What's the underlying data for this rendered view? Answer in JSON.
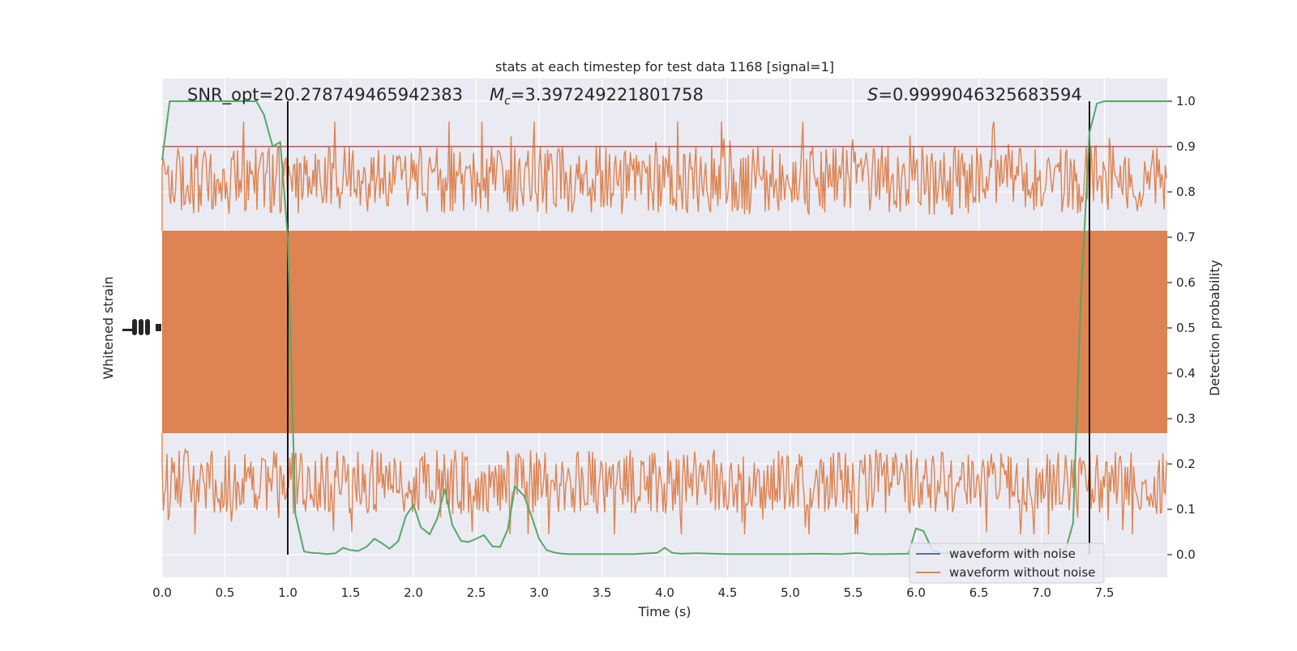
{
  "chart_data": {
    "type": "line",
    "title": "stats at each timestep for test data 1168 [signal=1]",
    "xlabel": "Time (s)",
    "ylabel_left": "Whitened strain",
    "ylabel_right": "Detection probability",
    "xlim": [
      0.0,
      8.0
    ],
    "ylim_right": [
      -0.05,
      1.05
    ],
    "grid": true,
    "x_ticks": [
      "0.0",
      "0.5",
      "1.0",
      "1.5",
      "2.0",
      "2.5",
      "3.0",
      "3.5",
      "4.0",
      "4.5",
      "5.0",
      "5.5",
      "6.0",
      "6.5",
      "7.0",
      "7.5"
    ],
    "y_ticks_right": [
      "0.0",
      "0.1",
      "0.2",
      "0.3",
      "0.4",
      "0.5",
      "0.6",
      "0.7",
      "0.8",
      "0.9",
      "1.0"
    ],
    "annotations": {
      "snr": "SNR_opt=20.278749465942383",
      "mc_symbol": "M",
      "mc_subscript": "c",
      "mc_value": "=3.397249221801758",
      "s_symbol": "S",
      "s_value": "=0.9999046325683594"
    },
    "threshold": {
      "value": 0.9,
      "color": "#c44e52"
    },
    "vertical_markers": [
      1.0,
      7.38
    ],
    "legend": {
      "location": "lower right",
      "entries": [
        {
          "label": "waveform with noise",
          "color": "#4c72b0"
        },
        {
          "label": "waveform without noise",
          "color": "#dd8452"
        }
      ]
    },
    "waveform_color": "#dd8452",
    "detection_color": "#55a868",
    "series": [
      {
        "name": "detection probability",
        "x": [
          0.0,
          0.06,
          0.13,
          0.25,
          0.5,
          0.75,
          0.81,
          0.88,
          0.94,
          1.0,
          1.06,
          1.13,
          1.19,
          1.25,
          1.31,
          1.38,
          1.44,
          1.5,
          1.56,
          1.63,
          1.69,
          1.75,
          1.81,
          1.88,
          1.94,
          2.0,
          2.06,
          2.13,
          2.19,
          2.25,
          2.31,
          2.38,
          2.44,
          2.5,
          2.56,
          2.63,
          2.69,
          2.75,
          2.81,
          2.88,
          2.94,
          3.0,
          3.06,
          3.13,
          3.19,
          3.25,
          3.31,
          3.38,
          3.5,
          3.75,
          3.94,
          4.0,
          4.06,
          4.13,
          4.25,
          4.5,
          4.75,
          5.0,
          5.25,
          5.4,
          5.5,
          5.56,
          5.63,
          5.75,
          5.94,
          6.0,
          6.06,
          6.13,
          6.2,
          6.5,
          7.0,
          7.19,
          7.25,
          7.31,
          7.38,
          7.44,
          7.5,
          7.56,
          7.63,
          8.0
        ],
        "values": [
          0.87,
          1.0,
          1.0,
          1.0,
          1.0,
          1.0,
          0.97,
          0.9,
          0.91,
          0.7,
          0.09,
          0.007,
          0.004,
          0.003,
          0.001,
          0.003,
          0.015,
          0.01,
          0.008,
          0.018,
          0.035,
          0.025,
          0.013,
          0.03,
          0.085,
          0.11,
          0.06,
          0.045,
          0.08,
          0.145,
          0.065,
          0.03,
          0.028,
          0.035,
          0.043,
          0.018,
          0.017,
          0.055,
          0.15,
          0.13,
          0.085,
          0.035,
          0.01,
          0.004,
          0.002,
          0.001,
          0.001,
          0.001,
          0.001,
          0.001,
          0.004,
          0.015,
          0.004,
          0.002,
          0.003,
          0.001,
          0.001,
          0.001,
          0.002,
          0.001,
          0.003,
          0.003,
          0.001,
          0.001,
          0.002,
          0.058,
          0.052,
          0.01,
          0.003,
          0.002,
          0.002,
          0.01,
          0.07,
          0.55,
          0.93,
          0.995,
          1.0,
          1.0,
          1.0,
          1.0
        ]
      }
    ]
  }
}
